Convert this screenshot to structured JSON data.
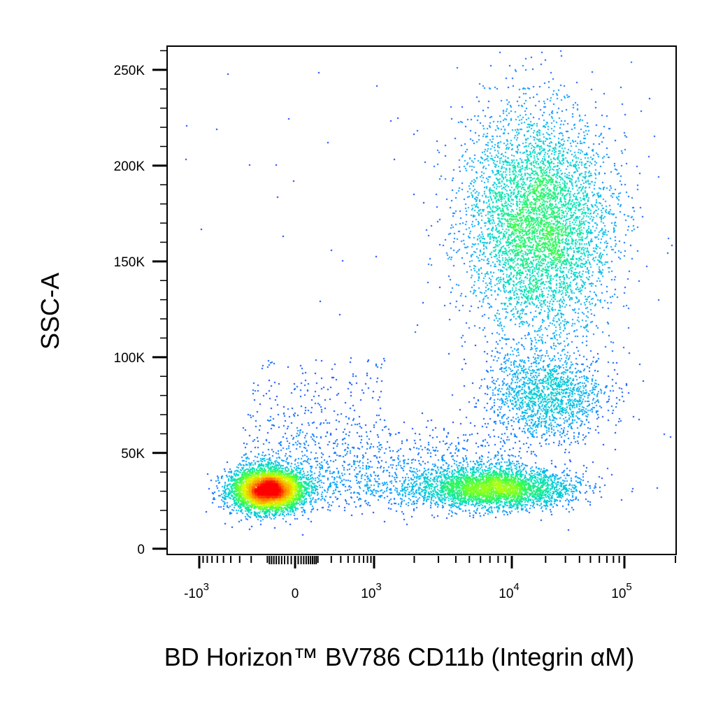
{
  "chart_data": {
    "type": "scatter",
    "style": "flow-cytometry pseudocolor density dot plot",
    "xlabel": "BD Horizon™ BV786 CD11b (Integrin αM)",
    "ylabel": "SSC-A",
    "x_scale": "biexponential (logicle)",
    "y_scale": "linear",
    "xlim": [
      -1500,
      200000
    ],
    "ylim": [
      -3000,
      262000
    ],
    "x_ticks": [
      {
        "value": -1000,
        "base": "-10",
        "exp": "3"
      },
      {
        "value": 0,
        "base": "0",
        "exp": ""
      },
      {
        "value": 1000,
        "base": "10",
        "exp": "3"
      },
      {
        "value": 10000,
        "base": "10",
        "exp": "4"
      },
      {
        "value": 100000,
        "base": "10",
        "exp": "5"
      }
    ],
    "y_ticks": [
      {
        "value": 0,
        "label": "0"
      },
      {
        "value": 50000,
        "label": "50K"
      },
      {
        "value": 100000,
        "label": "100K"
      },
      {
        "value": 150000,
        "label": "150K"
      },
      {
        "value": 200000,
        "label": "200K"
      },
      {
        "value": 250000,
        "label": "250K"
      }
    ],
    "colormap": [
      "#0000ff",
      "#00a0ff",
      "#00e0c0",
      "#40ff40",
      "#e0ff00",
      "#ffa000",
      "#ff0000"
    ],
    "populations": [
      {
        "label": "CD11b negative, low SSC",
        "x_center": -100,
        "y_center": 31000,
        "approx_fraction": 0.22
      },
      {
        "label": "CD11b+ low SSC",
        "x_center": 8000,
        "y_center": 32000,
        "approx_fraction": 0.14
      },
      {
        "label": "CD11b+ intermediate SSC",
        "x_center": 20000,
        "y_center": 80000,
        "approx_fraction": 0.08
      },
      {
        "label": "CD11b+ high SSC",
        "x_center": 17000,
        "y_center": 170000,
        "approx_fraction": 0.5
      },
      {
        "label": "Scattered bridge events",
        "x_center": 1500,
        "y_center": 45000,
        "approx_fraction": 0.06
      }
    ],
    "grid": false,
    "legend": "none"
  }
}
